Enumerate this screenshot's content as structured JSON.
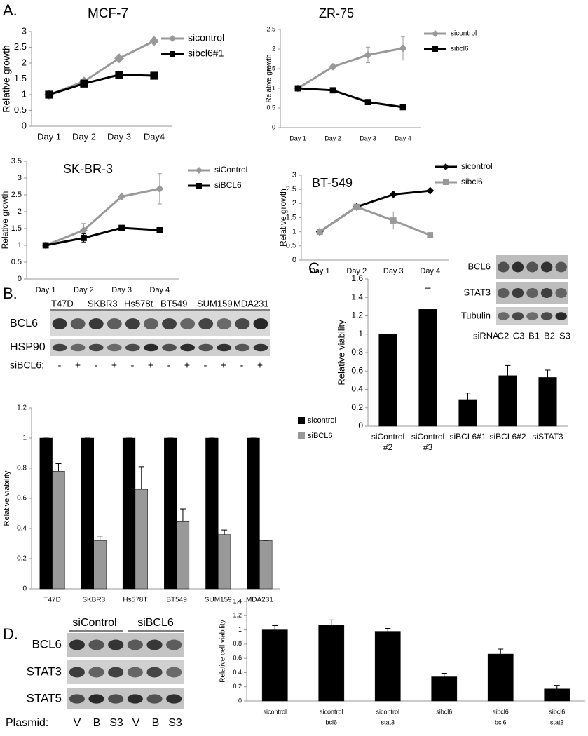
{
  "panel_labels": [
    "A.",
    "B.",
    "C.",
    "D."
  ],
  "blot_B": {
    "lanes": [
      "T47D",
      "SKBR3",
      "Hs578t",
      "BT549",
      "SUM159",
      "MDA231"
    ],
    "rows": [
      "BCL6",
      "HSP90"
    ],
    "treatment_label": "siBCL6:",
    "treatment": [
      "-",
      "+",
      "-",
      "+",
      "-",
      "+",
      "-",
      "+",
      "-",
      "+",
      "-",
      "+"
    ]
  },
  "blot_C": {
    "rows": [
      "BCL6",
      "STAT3",
      "Tubulin"
    ],
    "treatment_label": "siRNA:",
    "treatment": [
      "C2",
      "C3",
      "B1",
      "B2",
      "S3"
    ]
  },
  "blot_D": {
    "groups": [
      "siControl",
      "siBCL6"
    ],
    "rows": [
      "BCL6",
      "STAT3",
      "STAT5"
    ],
    "treatment_label": "Plasmid:",
    "treatment": [
      "V",
      "B",
      "S3",
      "V",
      "B",
      "S3"
    ]
  },
  "chart_data": [
    {
      "type": "line",
      "title": "MCF-7",
      "ylabel": "Relative growth",
      "categories": [
        "Day 1",
        "Day 2",
        "Day 3",
        "Day4"
      ],
      "ylim": [
        0,
        3
      ],
      "yticks": [
        0,
        0.5,
        1,
        1.5,
        2,
        2.5,
        3
      ],
      "series": [
        {
          "name": "sicontrol",
          "color": "#999999",
          "marker": "diamond",
          "values": [
            1,
            1.42,
            2.15,
            2.7
          ],
          "errors": [
            0,
            0.03,
            0.05,
            0.1
          ]
        },
        {
          "name": "sibcl6#1",
          "color": "#000000",
          "marker": "square",
          "values": [
            1,
            1.35,
            1.63,
            1.6
          ],
          "errors": [
            0,
            0.03,
            0.03,
            0.03
          ]
        }
      ]
    },
    {
      "type": "line",
      "title": "ZR-75",
      "ylabel": "Relative growth",
      "categories": [
        "Day 1",
        "Day 2",
        "Day 3",
        "Day 4"
      ],
      "ylim": [
        0,
        2.5
      ],
      "yticks": [
        0,
        0.5,
        1,
        1.5,
        2,
        2.5
      ],
      "series": [
        {
          "name": "sicontrol",
          "color": "#999999",
          "marker": "diamond",
          "values": [
            1,
            1.55,
            1.85,
            2.02
          ],
          "errors": [
            0,
            0.05,
            0.2,
            0.3
          ]
        },
        {
          "name": "sibcl6",
          "color": "#000000",
          "marker": "square",
          "values": [
            1,
            0.95,
            0.65,
            0.52
          ],
          "errors": [
            0,
            0.02,
            0.02,
            0.02
          ]
        }
      ]
    },
    {
      "type": "line",
      "title": "SK-BR-3",
      "ylabel": "Relative growth",
      "categories": [
        "Day 1",
        "Day 2",
        "Day 3",
        "Day 4"
      ],
      "ylim": [
        0,
        3.5
      ],
      "yticks": [
        0,
        0.5,
        1,
        1.5,
        2,
        2.5,
        3,
        3.5
      ],
      "series": [
        {
          "name": "siControl",
          "color": "#999999",
          "marker": "diamond",
          "values": [
            1,
            1.45,
            2.45,
            2.68
          ],
          "errors": [
            0,
            0.2,
            0.1,
            0.45
          ]
        },
        {
          "name": "siBCL6",
          "color": "#000000",
          "marker": "square",
          "values": [
            1,
            1.22,
            1.52,
            1.45
          ],
          "errors": [
            0,
            0.12,
            0.05,
            0.05
          ]
        }
      ]
    },
    {
      "type": "line",
      "title": "BT-549",
      "ylabel": "Relative growth",
      "categories": [
        "Day 1",
        "Day 2",
        "Day 3",
        "Day 4"
      ],
      "ylim": [
        0,
        3
      ],
      "yticks": [
        0,
        0.5,
        1,
        1.5,
        2,
        2.5,
        3
      ],
      "series": [
        {
          "name": "sicontrol",
          "color": "#000000",
          "marker": "diamond",
          "values": [
            1,
            1.88,
            2.32,
            2.45
          ],
          "errors": [
            0,
            0.03,
            0.03,
            0.03
          ]
        },
        {
          "name": "sibcl6",
          "color": "#999999",
          "marker": "square",
          "values": [
            1,
            1.88,
            1.4,
            0.88
          ],
          "errors": [
            0,
            0.05,
            0.3,
            0.05
          ]
        }
      ]
    },
    {
      "type": "bar",
      "ylabel": "Relative viability",
      "categories": [
        [
          "T47D"
        ],
        [
          "SKBR3"
        ],
        [
          "Hs578T"
        ],
        [
          "BT549"
        ],
        [
          "SUM159"
        ],
        [
          "MDA231"
        ]
      ],
      "ylim": [
        0,
        1.2
      ],
      "yticks": [
        0,
        0.2,
        0.4,
        0.6,
        0.8,
        1,
        1.2
      ],
      "series": [
        {
          "name": "sicontrol",
          "color": "#000000",
          "values": [
            1,
            1,
            1,
            1,
            1,
            1
          ],
          "errors": [
            0,
            0,
            0,
            0,
            0,
            0
          ]
        },
        {
          "name": "siBCL6",
          "color": "#999999",
          "values": [
            0.78,
            0.32,
            0.66,
            0.45,
            0.36,
            0.32
          ],
          "errors": [
            0.05,
            0.03,
            0.15,
            0.08,
            0.03,
            0
          ]
        }
      ]
    },
    {
      "type": "bar",
      "ylabel": "Relative viability",
      "categories": [
        [
          "siControl",
          "#2"
        ],
        [
          "siControl",
          "#3"
        ],
        [
          "siBCL6#1"
        ],
        [
          "siBCL6#2"
        ],
        [
          "siSTAT3"
        ]
      ],
      "ylim": [
        0,
        1.6
      ],
      "yticks": [
        0,
        0.2,
        0.4,
        0.6,
        0.8,
        1,
        1.2,
        1.4,
        1.6
      ],
      "series": [
        {
          "color": "#000000",
          "values": [
            1,
            1.27,
            0.29,
            0.55,
            0.53
          ],
          "errors": [
            0,
            0.23,
            0.07,
            0.11,
            0.08
          ]
        }
      ]
    },
    {
      "type": "bar",
      "ylabel": "Relative cell viability",
      "categories": [
        [
          "sicontrol"
        ],
        [
          "sicontrol",
          "bcl6"
        ],
        [
          "sicontrol",
          "stat3"
        ],
        [
          "sibcl6"
        ],
        [
          "sibcl6",
          "bcl6"
        ],
        [
          "sibcl6",
          "stat3"
        ]
      ],
      "ylim": [
        0,
        1.4
      ],
      "yticks": [
        0,
        0.2,
        0.4,
        0.6,
        0.8,
        1,
        1.2,
        1.4
      ],
      "series": [
        {
          "color": "#000000",
          "values": [
            1,
            1.07,
            0.98,
            0.34,
            0.66,
            0.17
          ],
          "errors": [
            0.06,
            0.07,
            0.04,
            0.05,
            0.07,
            0.05
          ]
        }
      ]
    }
  ]
}
